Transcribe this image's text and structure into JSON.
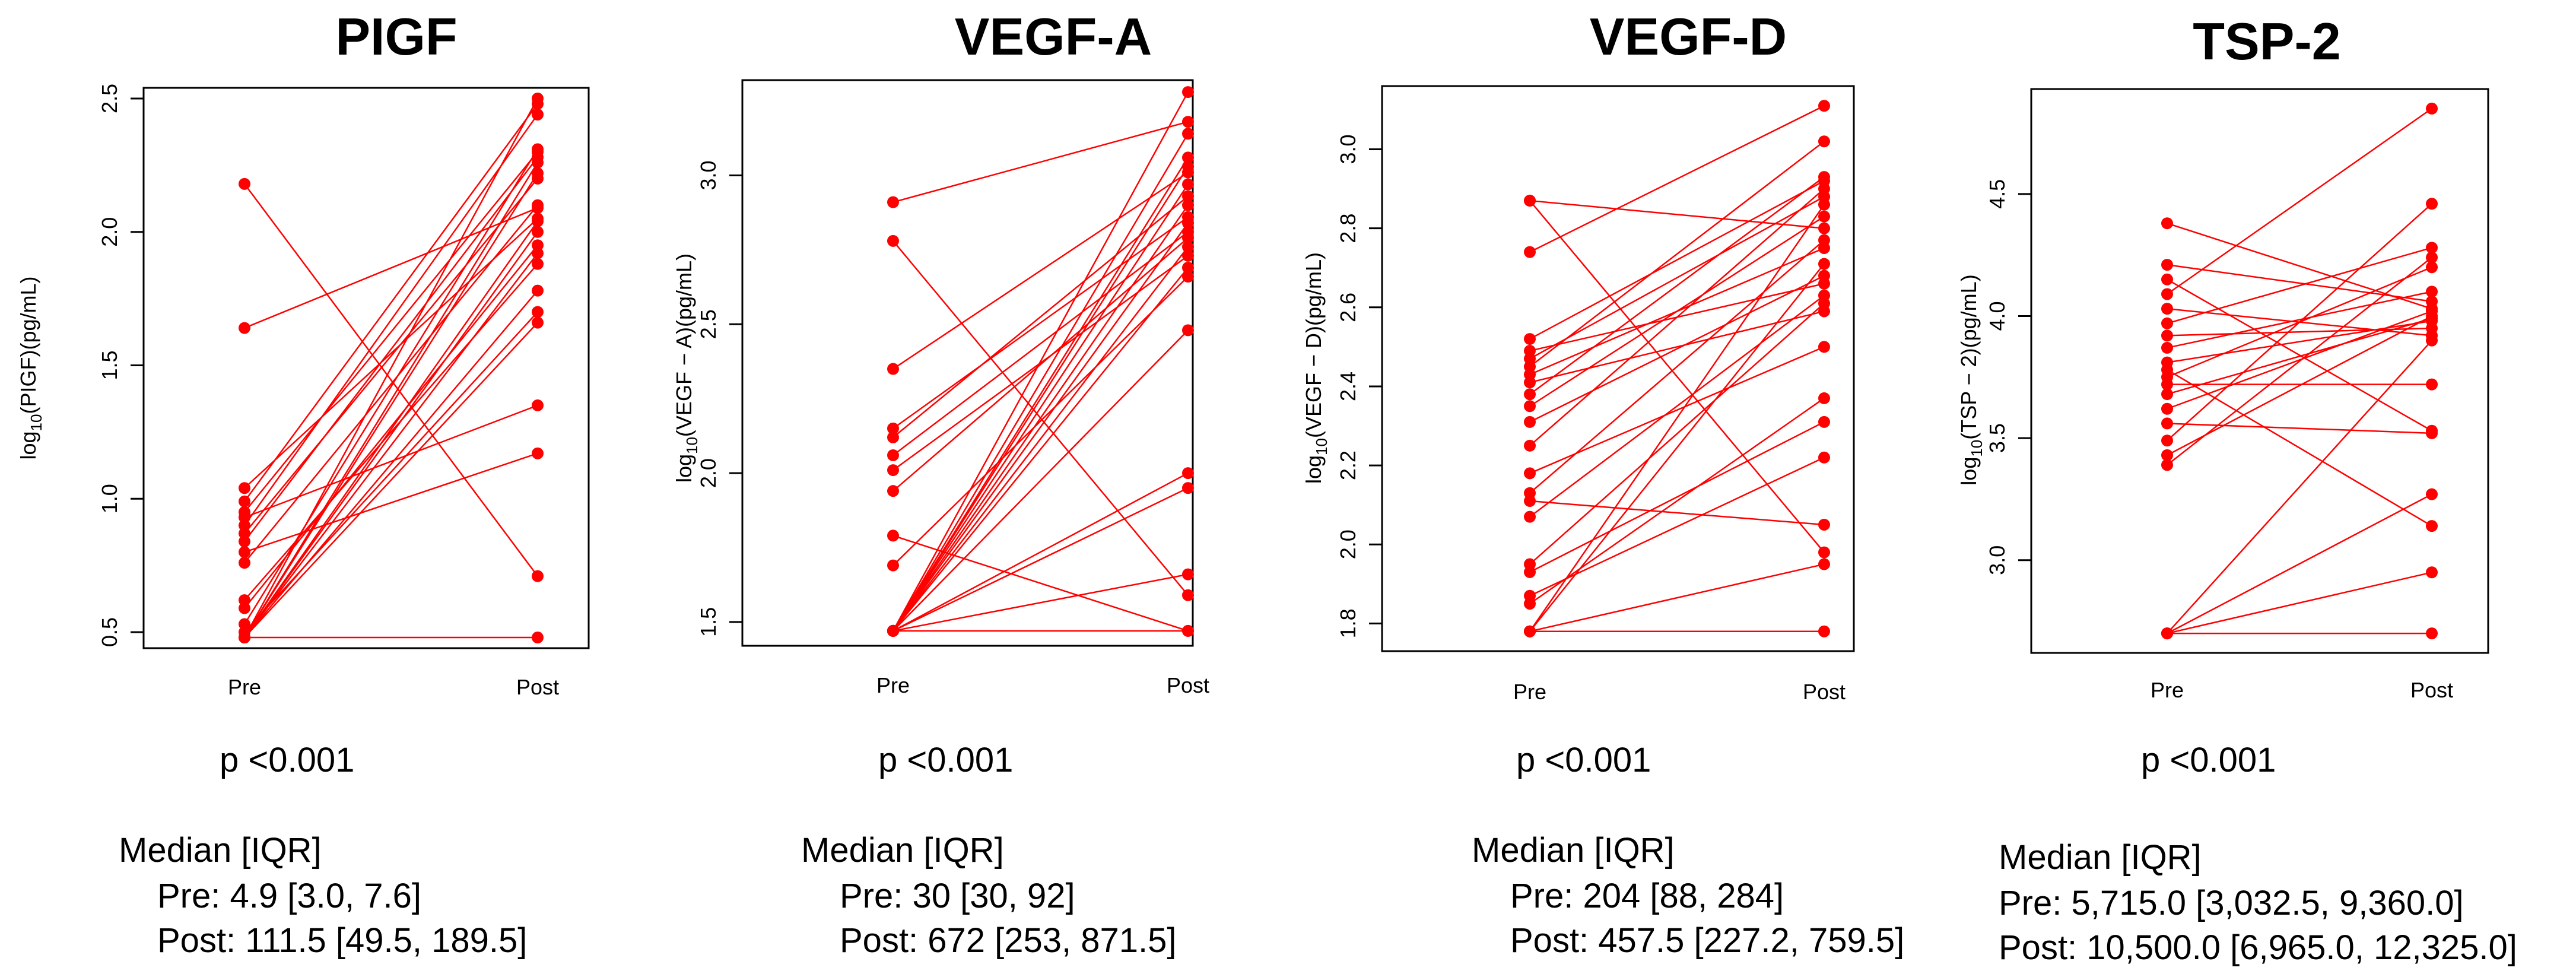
{
  "chart_data": [
    {
      "type": "line",
      "title": "PIGF",
      "xlabel": "",
      "ylabel_prefix": "log",
      "ylabel_sub": "10",
      "ylabel_rest": "(PIGF)(pg/mL)",
      "categories": [
        "Pre",
        "Post"
      ],
      "ylim": [
        0.44,
        2.54
      ],
      "yticks": [
        0.5,
        1.0,
        1.5,
        2.0,
        2.5
      ],
      "ytick_labels": [
        "0.5",
        "1.0",
        "1.5",
        "2.0",
        "2.5"
      ],
      "line_color": "#ff0000",
      "series": [
        {
          "pre": 2.18,
          "post": 0.71
        },
        {
          "pre": 1.64,
          "post": 2.09
        },
        {
          "pre": 1.04,
          "post": 2.05
        },
        {
          "pre": 0.99,
          "post": 2.48
        },
        {
          "pre": 0.95,
          "post": 2.3
        },
        {
          "pre": 0.93,
          "post": 1.35
        },
        {
          "pre": 0.9,
          "post": 2.44
        },
        {
          "pre": 0.87,
          "post": 2.2
        },
        {
          "pre": 0.84,
          "post": 2.28
        },
        {
          "pre": 0.8,
          "post": 1.17
        },
        {
          "pre": 0.76,
          "post": 2.1
        },
        {
          "pre": 0.62,
          "post": 1.88
        },
        {
          "pre": 0.59,
          "post": 1.95
        },
        {
          "pre": 0.53,
          "post": 2.31
        },
        {
          "pre": 0.5,
          "post": 1.7
        },
        {
          "pre": 0.48,
          "post": 0.48
        },
        {
          "pre": 0.48,
          "post": 2.5
        },
        {
          "pre": 0.48,
          "post": 2.26
        },
        {
          "pre": 0.48,
          "post": 2.04
        },
        {
          "pre": 0.48,
          "post": 1.78
        },
        {
          "pre": 0.48,
          "post": 1.66
        },
        {
          "pre": 0.48,
          "post": 2.0
        },
        {
          "pre": 0.48,
          "post": 2.22
        },
        {
          "pre": 0.48,
          "post": 1.92
        }
      ],
      "p_value": "p <0.001",
      "median_header": "Median [IQR]",
      "median_pre": "Pre: 4.9 [3.0, 7.6]",
      "median_post": "Post: 111.5 [49.5, 189.5]"
    },
    {
      "type": "line",
      "title": "VEGF-A",
      "xlabel": "",
      "ylabel_prefix": "log",
      "ylabel_sub": "10",
      "ylabel_rest": "(VEGF − A)(pg/mL)",
      "categories": [
        "Pre",
        "Post"
      ],
      "ylim": [
        1.42,
        3.32
      ],
      "yticks": [
        1.5,
        2.0,
        2.5,
        3.0
      ],
      "ytick_labels": [
        "1.5",
        "2.0",
        "2.5",
        "3.0"
      ],
      "line_color": "#ff0000",
      "series": [
        {
          "pre": 2.91,
          "post": 3.18
        },
        {
          "pre": 2.78,
          "post": 1.59
        },
        {
          "pre": 2.35,
          "post": 3.01
        },
        {
          "pre": 2.15,
          "post": 2.86
        },
        {
          "pre": 2.12,
          "post": 2.93
        },
        {
          "pre": 2.06,
          "post": 2.81
        },
        {
          "pre": 2.01,
          "post": 2.73
        },
        {
          "pre": 1.94,
          "post": 2.79
        },
        {
          "pre": 1.79,
          "post": 1.47
        },
        {
          "pre": 1.69,
          "post": 2.66
        },
        {
          "pre": 1.47,
          "post": 1.47
        },
        {
          "pre": 1.47,
          "post": 3.28
        },
        {
          "pre": 1.47,
          "post": 3.14
        },
        {
          "pre": 1.47,
          "post": 3.06
        },
        {
          "pre": 1.47,
          "post": 2.97
        },
        {
          "pre": 1.47,
          "post": 2.9
        },
        {
          "pre": 1.47,
          "post": 2.84
        },
        {
          "pre": 1.47,
          "post": 2.76
        },
        {
          "pre": 1.47,
          "post": 2.69
        },
        {
          "pre": 1.47,
          "post": 2.48
        },
        {
          "pre": 1.47,
          "post": 2.0
        },
        {
          "pre": 1.47,
          "post": 1.95
        },
        {
          "pre": 1.47,
          "post": 1.66
        },
        {
          "pre": 1.47,
          "post": 3.03
        }
      ],
      "p_value": "p <0.001",
      "median_header": "Median [IQR]",
      "median_pre": "Pre: 30 [30, 92]",
      "median_post": "Post: 672 [253, 871.5]"
    },
    {
      "type": "line",
      "title": "VEGF-D",
      "xlabel": "",
      "ylabel_prefix": "log",
      "ylabel_sub": "10",
      "ylabel_rest": "(VEGF − D)(pg/mL)",
      "categories": [
        "Pre",
        "Post"
      ],
      "ylim": [
        1.73,
        3.16
      ],
      "yticks": [
        1.8,
        2.0,
        2.2,
        2.4,
        2.6,
        2.8,
        3.0
      ],
      "ytick_labels": [
        "1.8",
        "2.0",
        "2.2",
        "2.4",
        "2.6",
        "2.8",
        "3.0"
      ],
      "line_color": "#ff0000",
      "series": [
        {
          "pre": 2.87,
          "post": 1.98
        },
        {
          "pre": 2.87,
          "post": 2.8
        },
        {
          "pre": 2.74,
          "post": 3.11
        },
        {
          "pre": 2.52,
          "post": 2.92
        },
        {
          "pre": 2.49,
          "post": 2.66
        },
        {
          "pre": 2.47,
          "post": 2.88
        },
        {
          "pre": 2.45,
          "post": 3.02
        },
        {
          "pre": 2.43,
          "post": 2.75
        },
        {
          "pre": 2.41,
          "post": 2.59
        },
        {
          "pre": 2.38,
          "post": 2.93
        },
        {
          "pre": 2.35,
          "post": 2.83
        },
        {
          "pre": 2.31,
          "post": 2.68
        },
        {
          "pre": 2.25,
          "post": 2.9
        },
        {
          "pre": 2.18,
          "post": 2.5
        },
        {
          "pre": 2.13,
          "post": 2.77
        },
        {
          "pre": 2.11,
          "post": 2.05
        },
        {
          "pre": 2.07,
          "post": 2.63
        },
        {
          "pre": 1.95,
          "post": 2.61
        },
        {
          "pre": 1.93,
          "post": 2.31
        },
        {
          "pre": 1.87,
          "post": 2.22
        },
        {
          "pre": 1.85,
          "post": 2.37
        },
        {
          "pre": 1.78,
          "post": 1.78
        },
        {
          "pre": 1.78,
          "post": 1.95
        },
        {
          "pre": 1.78,
          "post": 2.71
        },
        {
          "pre": 1.78,
          "post": 2.86
        }
      ],
      "p_value": "p <0.001",
      "median_header": "Median [IQR]",
      "median_pre": "Pre: 204 [88, 284]",
      "median_post": "Post: 457.5 [227.2, 759.5]"
    },
    {
      "type": "line",
      "title": "TSP-2",
      "xlabel": "",
      "ylabel_prefix": "log",
      "ylabel_sub": "10",
      "ylabel_rest": "(TSP − 2)(pg/mL)",
      "categories": [
        "Pre",
        "Post"
      ],
      "ylim": [
        2.62,
        4.93
      ],
      "yticks": [
        3.0,
        3.5,
        4.0,
        4.5
      ],
      "ytick_labels": [
        "3.0",
        "3.5",
        "4.0",
        "4.5"
      ],
      "line_color": "#ff0000",
      "series": [
        {
          "pre": 4.38,
          "post": 4.03
        },
        {
          "pre": 4.21,
          "post": 4.06
        },
        {
          "pre": 4.15,
          "post": 3.53
        },
        {
          "pre": 4.09,
          "post": 4.85
        },
        {
          "pre": 4.03,
          "post": 3.92
        },
        {
          "pre": 3.97,
          "post": 4.28
        },
        {
          "pre": 3.92,
          "post": 3.95
        },
        {
          "pre": 3.87,
          "post": 4.1
        },
        {
          "pre": 3.81,
          "post": 3.98
        },
        {
          "pre": 3.78,
          "post": 3.14
        },
        {
          "pre": 3.75,
          "post": 4.2
        },
        {
          "pre": 3.72,
          "post": 3.72
        },
        {
          "pre": 3.68,
          "post": 3.99
        },
        {
          "pre": 3.62,
          "post": 4.02
        },
        {
          "pre": 3.56,
          "post": 3.52
        },
        {
          "pre": 3.49,
          "post": 4.46
        },
        {
          "pre": 3.43,
          "post": 4.0
        },
        {
          "pre": 3.39,
          "post": 4.24
        },
        {
          "pre": 2.7,
          "post": 2.7
        },
        {
          "pre": 2.7,
          "post": 2.95
        },
        {
          "pre": 2.7,
          "post": 3.27
        },
        {
          "pre": 2.7,
          "post": 3.9
        }
      ],
      "p_value": "p <0.001",
      "median_header": "Median [IQR]",
      "median_pre": "Pre: 5,715.0 [3,032.5, 9,360.0]",
      "median_post": "Post: 10,500.0 [6,965.0, 12,325.0]"
    }
  ]
}
